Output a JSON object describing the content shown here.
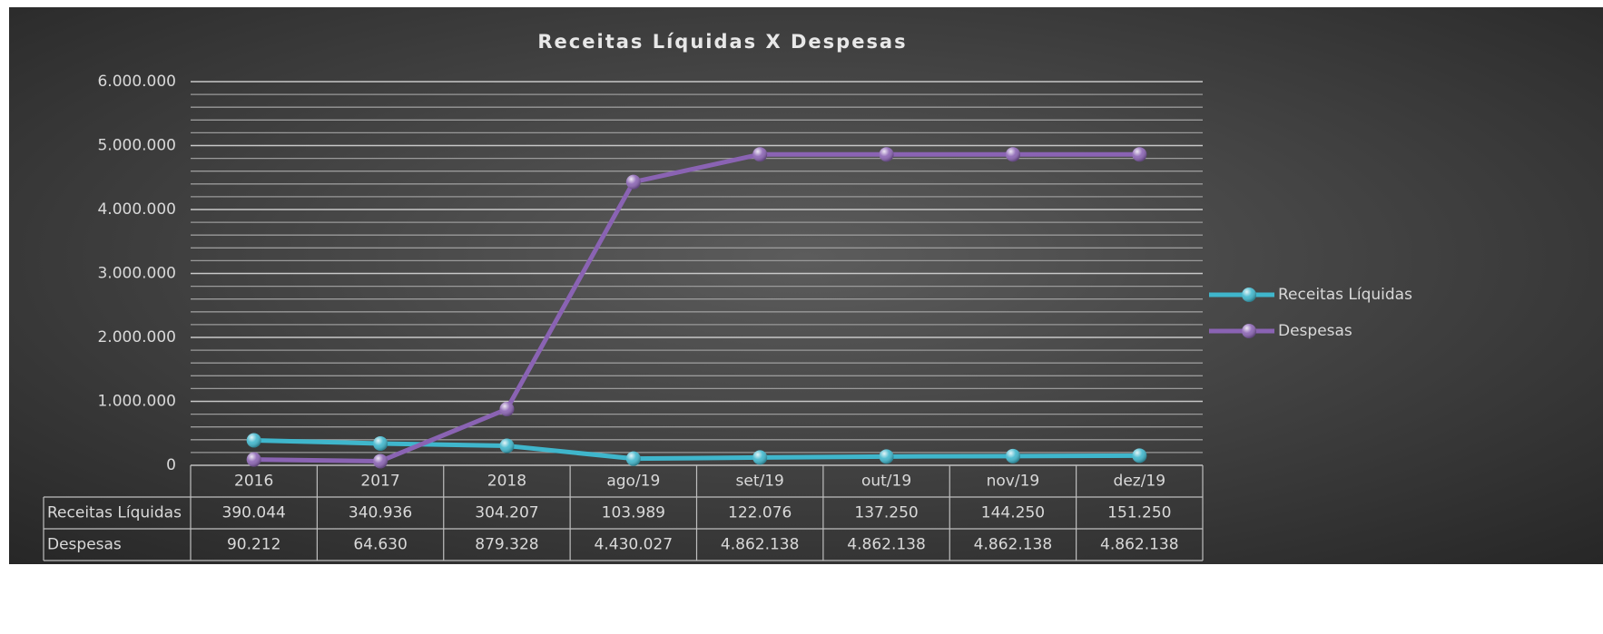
{
  "chart_data": {
    "type": "line",
    "title": "Receitas Líquidas X Despesas",
    "categories": [
      "2016",
      "2017",
      "2018",
      "ago/19",
      "set/19",
      "out/19",
      "nov/19",
      "dez/19"
    ],
    "series": [
      {
        "name": "Receitas Líquidas",
        "color": "#3fb6cc",
        "values": [
          390044,
          340936,
          304207,
          103989,
          122076,
          137250,
          144250,
          151250
        ],
        "value_labels": [
          "390.044",
          "340.936",
          "304.207",
          "103.989",
          "122.076",
          "137.250",
          "144.250",
          "151.250"
        ]
      },
      {
        "name": "Despesas",
        "color": "#8a63b3",
        "values": [
          90212,
          64630,
          879328,
          4430027,
          4862138,
          4862138,
          4862138,
          4862138
        ],
        "value_labels": [
          "90.212",
          "64.630",
          "879.328",
          "4.430.027",
          "4.862.138",
          "4.862.138",
          "4.862.138",
          "4.862.138"
        ]
      }
    ],
    "ylim": [
      0,
      6000000
    ],
    "yticks": [
      0,
      {
        "value": 1000000,
        "label": "1.000.000"
      },
      {
        "value": 2000000,
        "label": "2.000.000"
      },
      {
        "value": 3000000,
        "label": "3.000.000"
      },
      {
        "value": 4000000,
        "label": "4.000.000"
      },
      {
        "value": 5000000,
        "label": "5.000.000"
      },
      {
        "value": 6000000,
        "label": "6.000.000"
      }
    ],
    "yminorticks": [
      200000,
      400000,
      600000,
      800000,
      1200000,
      1400000,
      1600000,
      1800000,
      2200000,
      2400000,
      2600000,
      2800000,
      3200000,
      3400000,
      3600000,
      3800000,
      4200000,
      4400000,
      4600000,
      4800000,
      5200000,
      5400000,
      5600000,
      5800000
    ],
    "grid": true,
    "legend": "right",
    "data_table": true
  }
}
